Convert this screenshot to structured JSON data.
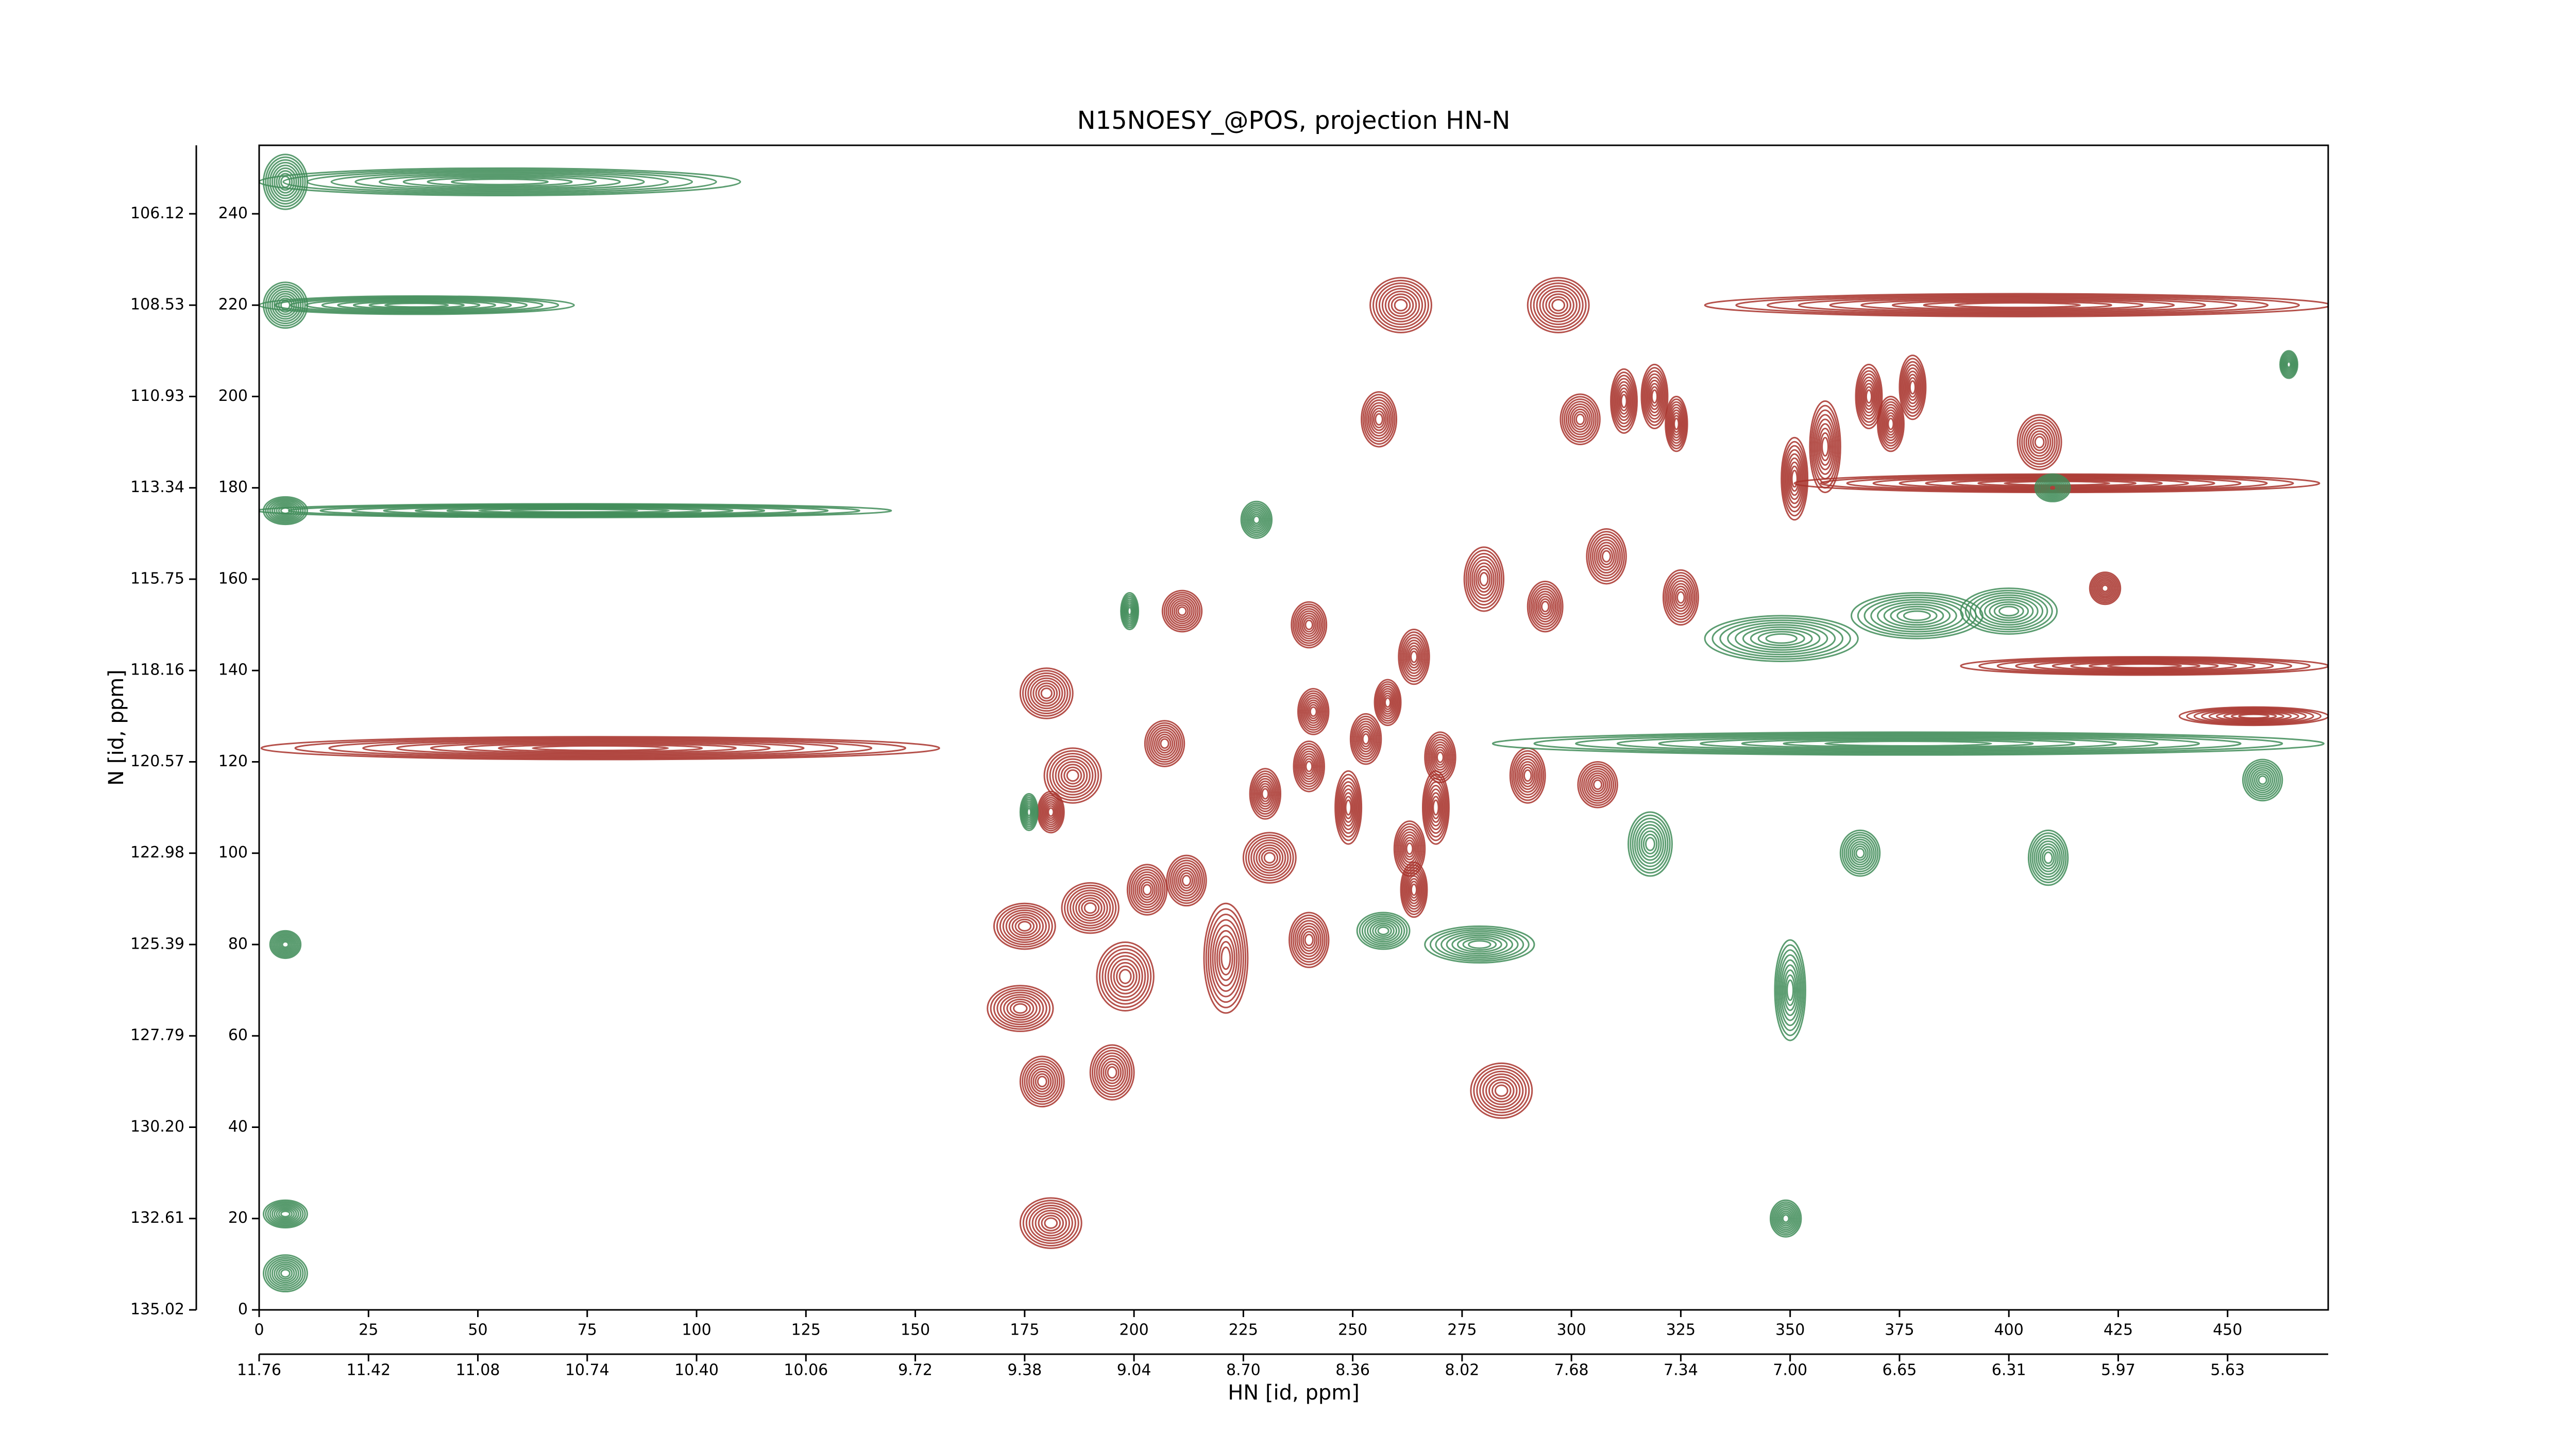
{
  "chart_data": {
    "type": "contour",
    "title": "N15NOESY_@POS, projection HN-N",
    "xlabel": "HN [id, ppm]",
    "ylabel": "N [id, ppm]",
    "xlim": [
      0,
      473
    ],
    "ylim": [
      0,
      255
    ],
    "xticks": [
      0,
      25,
      50,
      75,
      100,
      125,
      150,
      175,
      200,
      225,
      250,
      275,
      300,
      325,
      350,
      375,
      400,
      425,
      450
    ],
    "yticks": [
      0,
      20,
      40,
      60,
      80,
      100,
      120,
      140,
      160,
      180,
      200,
      220,
      240
    ],
    "x2ticks": [
      {
        "value": 0,
        "label": "11.76"
      },
      {
        "value": 25,
        "label": "11.42"
      },
      {
        "value": 50,
        "label": "11.08"
      },
      {
        "value": 75,
        "label": "10.74"
      },
      {
        "value": 100,
        "label": "10.40"
      },
      {
        "value": 125,
        "label": "10.06"
      },
      {
        "value": 150,
        "label": "9.72"
      },
      {
        "value": 175,
        "label": "9.38"
      },
      {
        "value": 200,
        "label": "9.04"
      },
      {
        "value": 225,
        "label": "8.70"
      },
      {
        "value": 250,
        "label": "8.36"
      },
      {
        "value": 275,
        "label": "8.02"
      },
      {
        "value": 300,
        "label": "7.68"
      },
      {
        "value": 325,
        "label": "7.34"
      },
      {
        "value": 350,
        "label": "7.00"
      },
      {
        "value": 375,
        "label": "6.65"
      },
      {
        "value": 400,
        "label": "6.31"
      },
      {
        "value": 425,
        "label": "5.97"
      },
      {
        "value": 450,
        "label": "5.63"
      }
    ],
    "y2ticks": [
      {
        "value": 0,
        "label": "135.02"
      },
      {
        "value": 20,
        "label": "132.61"
      },
      {
        "value": 40,
        "label": "130.20"
      },
      {
        "value": 60,
        "label": "127.79"
      },
      {
        "value": 80,
        "label": "125.39"
      },
      {
        "value": 100,
        "label": "122.98"
      },
      {
        "value": 120,
        "label": "120.57"
      },
      {
        "value": 140,
        "label": "118.16"
      },
      {
        "value": 160,
        "label": "115.75"
      },
      {
        "value": 180,
        "label": "113.34"
      },
      {
        "value": 200,
        "label": "110.93"
      },
      {
        "value": 220,
        "label": "108.53"
      },
      {
        "value": 240,
        "label": "106.12"
      }
    ],
    "series": [
      {
        "color": "#a8322c",
        "x": [
          261,
          297,
          256,
          302,
          312,
          319,
          324,
          358,
          351,
          368,
          373,
          378,
          407,
          280,
          308,
          325,
          294,
          211,
          240,
          264,
          180,
          241,
          258,
          253,
          207,
          186,
          240,
          270,
          230,
          249,
          269,
          290,
          306,
          181,
          263,
          231,
          203,
          212,
          264,
          190,
          175,
          221,
          240,
          198,
          174,
          179,
          195,
          284,
          181,
          422,
          78,
          402,
          411,
          456,
          431
        ],
        "y": [
          220,
          220,
          195,
          195,
          199,
          200,
          194,
          189,
          182,
          200,
          194,
          202,
          190,
          160,
          165,
          156,
          154,
          153,
          150,
          143,
          135,
          131,
          133,
          125,
          124,
          117,
          119,
          121,
          113,
          110,
          110,
          117,
          115,
          109,
          101,
          99,
          92,
          94,
          92,
          88,
          84,
          77,
          81,
          73,
          66,
          50,
          52,
          48,
          19,
          158,
          123,
          220,
          181,
          130,
          141
        ],
        "width": [
          14,
          14,
          8,
          9,
          6,
          6,
          5,
          7,
          6,
          6,
          6,
          6,
          10,
          9,
          9,
          8,
          8,
          9,
          8,
          7,
          12,
          7,
          6,
          7,
          9,
          13,
          7,
          7,
          7,
          6,
          6,
          8,
          9,
          6,
          7,
          12,
          9,
          9,
          6,
          13,
          14,
          10,
          9,
          13,
          15,
          10,
          10,
          14,
          14,
          7,
          155,
          143,
          120,
          34,
          84
        ],
        "height": [
          12,
          12,
          12,
          11,
          14,
          14,
          12,
          20,
          18,
          14,
          12,
          14,
          12,
          14,
          12,
          12,
          11,
          9,
          10,
          12,
          11,
          10,
          10,
          11,
          10,
          12,
          11,
          11,
          11,
          16,
          16,
          12,
          10,
          9,
          12,
          11,
          11,
          11,
          12,
          11,
          10,
          24,
          12,
          15,
          10,
          11,
          12,
          12,
          11,
          7,
          5,
          5,
          4,
          4,
          4
        ]
      },
      {
        "color": "#3f8c58",
        "x": [
          379,
          400,
          348,
          410,
          279,
          257,
          318,
          366,
          409,
          350,
          458,
          228,
          464,
          6,
          6,
          6,
          6,
          6,
          6,
          349,
          199,
          176,
          377,
          55,
          36,
          72
        ],
        "y": [
          152,
          153,
          147,
          180,
          80,
          83,
          102,
          100,
          99,
          70,
          116,
          173,
          207,
          247,
          220,
          175,
          80,
          21,
          8,
          20,
          153,
          109,
          124,
          247,
          220,
          175
        ],
        "width": [
          30,
          22,
          35,
          8,
          25,
          12,
          10,
          9,
          9,
          7,
          9,
          7,
          4,
          10,
          10,
          10,
          7,
          10,
          10,
          7,
          4,
          4,
          190,
          110,
          72,
          145
        ],
        "height": [
          10,
          10,
          10,
          6,
          8,
          8,
          14,
          10,
          12,
          22,
          9,
          8,
          6,
          12,
          10,
          6,
          6,
          6,
          8,
          8,
          8,
          8,
          5,
          6,
          4,
          3
        ]
      }
    ]
  }
}
